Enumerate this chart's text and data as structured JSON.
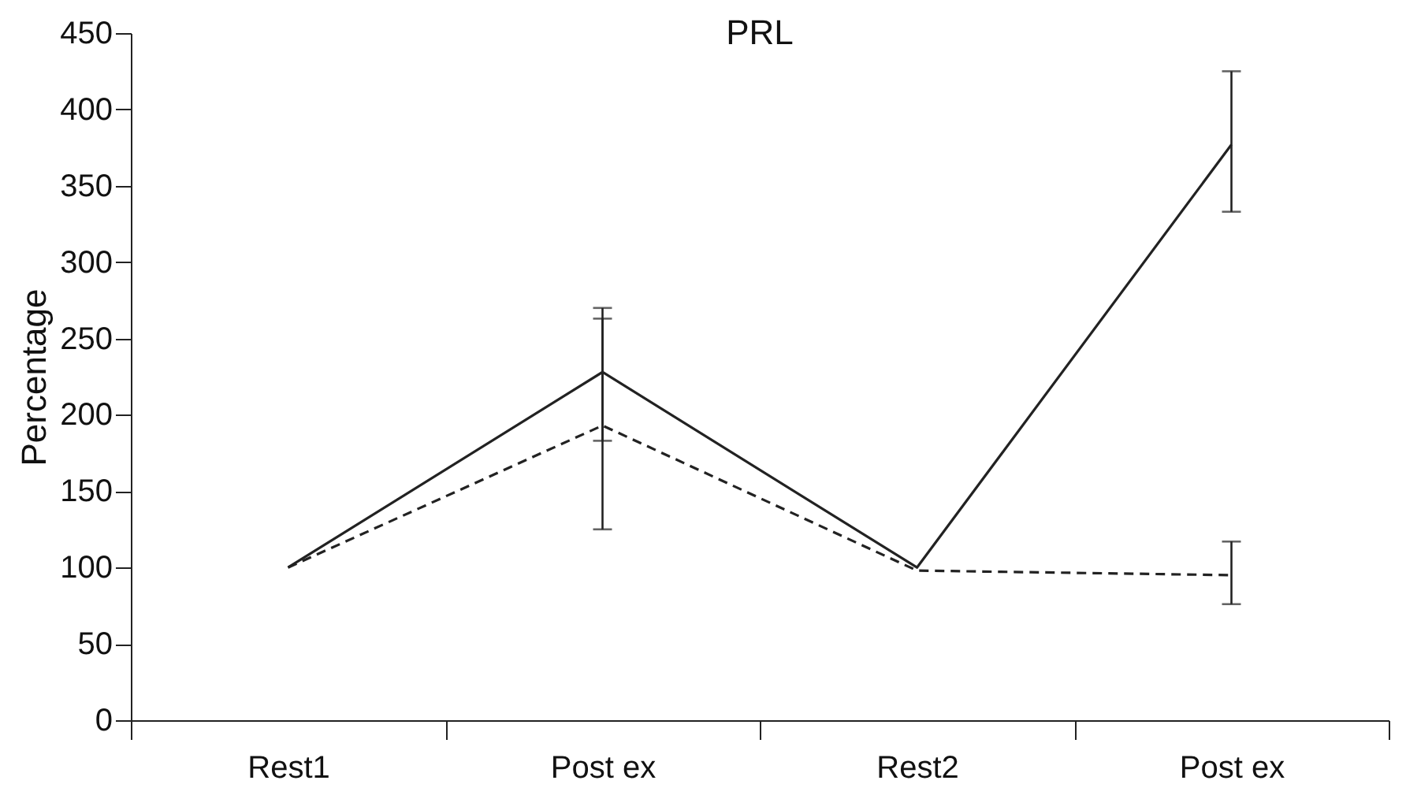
{
  "chart_data": {
    "type": "line",
    "title": "PRL",
    "ylabel": "Percentage",
    "categories": [
      "Rest1",
      "Post ex",
      "Rest2",
      "Post ex"
    ],
    "series": [
      {
        "color": "#222222",
        "line_style": "solid",
        "values": [
          100,
          228,
          100,
          377
        ],
        "errors": [
          null,
          [
            183,
            270
          ],
          null,
          [
            333,
            425
          ]
        ]
      },
      {
        "color": "#222222",
        "line_style": "dashed",
        "values": [
          100,
          193,
          98,
          95
        ],
        "errors": [
          null,
          [
            125,
            263
          ],
          null,
          [
            76,
            117
          ]
        ]
      }
    ],
    "ylim": [
      0,
      450
    ],
    "yticks": [
      0,
      50,
      100,
      150,
      200,
      250,
      300,
      350,
      400,
      450
    ],
    "grid": false,
    "marker": "none"
  }
}
